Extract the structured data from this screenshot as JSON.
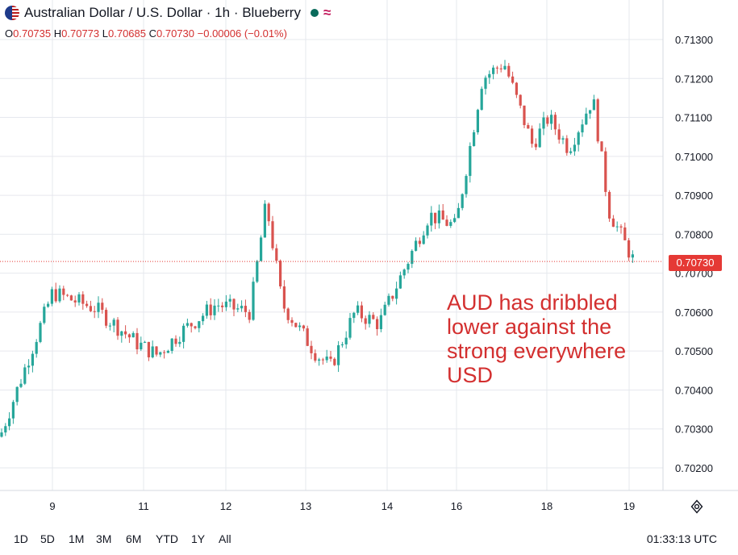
{
  "header": {
    "title": "Australian Dollar / U.S. Dollar · 1h · Blueberry",
    "status_icon": "green-dot-icon",
    "wave_icon": "≈"
  },
  "ohlc": {
    "o_label": "O",
    "o": "0.70735",
    "h_label": "H",
    "h": "0.70773",
    "l_label": "L",
    "l": "0.70685",
    "c_label": "C",
    "c": "0.70730",
    "change": "−0.00006 (−0.01%)"
  },
  "price_tag": "0.70730",
  "annotation": "AUD has dribbled\nlower against the\nstrong everywhere\nUSD",
  "ranges": [
    "1D",
    "5D",
    "1M",
    "3M",
    "6M",
    "YTD",
    "1Y",
    "All"
  ],
  "clock": "01:33:13 UTC",
  "colors": {
    "up": "#26a69a",
    "down": "#d9534f",
    "annotation": "#d32f2f",
    "price_tag": "#e53935"
  },
  "chart_data": {
    "type": "candlestick",
    "symbol": "AUD/USD",
    "interval": "1h",
    "ylim": [
      0.7014,
      0.7136
    ],
    "y_ticks": [
      "0.71300",
      "0.71200",
      "0.71100",
      "0.71000",
      "0.70900",
      "0.70800",
      "0.70700",
      "0.70600",
      "0.70500",
      "0.70400",
      "0.70300",
      "0.70200"
    ],
    "x_ticks": [
      "9",
      "11",
      "12",
      "13",
      "14",
      "16",
      "18",
      "19"
    ],
    "last_price": 0.7073,
    "grid": true,
    "close_path": [
      [
        "start",
        0.7028
      ],
      [
        "9",
        0.7065
      ],
      [
        "9",
        0.7061
      ],
      [
        "11",
        0.7052
      ],
      [
        "11",
        0.7049
      ],
      [
        "11",
        0.7055
      ],
      [
        "12",
        0.7062
      ],
      [
        "12",
        0.706
      ],
      [
        "12",
        0.7088
      ],
      [
        "13",
        0.7062
      ],
      [
        "13",
        0.7049
      ],
      [
        "13",
        0.7046
      ],
      [
        "14",
        0.706
      ],
      [
        "14",
        0.7057
      ],
      [
        "14",
        0.7085
      ],
      [
        "16",
        0.7082
      ],
      [
        "16",
        0.712
      ],
      [
        "16",
        0.7124
      ],
      [
        "18",
        0.7103
      ],
      [
        "18",
        0.711
      ],
      [
        "18",
        0.7102
      ],
      [
        "18",
        0.7115
      ],
      [
        "19",
        0.7086
      ],
      [
        "19",
        0.7073
      ]
    ]
  }
}
